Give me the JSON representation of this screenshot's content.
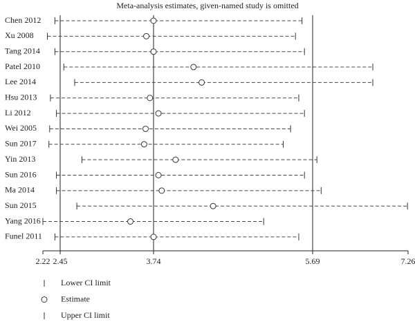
{
  "chart_data": {
    "type": "forest",
    "title": "Meta-analysis estimates, given-named study is omitted",
    "categories": [
      "Chen 2012",
      "Xu 2008",
      "Tang 2014",
      "Patel 2010",
      "Lee 2014",
      "Hsu 2013",
      "Li 2012",
      "Wei 2005",
      "Sun 2017",
      "Yin 2013",
      "Sun 2016",
      "Ma 2014",
      "Sun 2015",
      "Yang 2016",
      "Funel 2011"
    ],
    "series": [
      {
        "name": "Lower CI limit",
        "color": "#333333",
        "values": [
          2.38,
          2.28,
          2.38,
          2.5,
          2.65,
          2.32,
          2.4,
          2.31,
          2.3,
          2.75,
          2.4,
          2.4,
          2.68,
          2.22,
          2.38
        ]
      },
      {
        "name": "Estimate",
        "color": "#333333",
        "values": [
          3.74,
          3.64,
          3.74,
          4.23,
          4.33,
          3.69,
          3.8,
          3.63,
          3.61,
          4.01,
          3.8,
          3.84,
          4.47,
          3.42,
          3.74
        ]
      },
      {
        "name": "Upper CI limit",
        "color": "#333333",
        "values": [
          5.56,
          5.48,
          5.59,
          6.68,
          6.68,
          5.52,
          5.59,
          5.42,
          5.33,
          5.76,
          5.59,
          5.83,
          7.25,
          5.09,
          5.52
        ]
      }
    ],
    "xlim": [
      2.22,
      7.26
    ],
    "xticks": [
      2.22,
      2.45,
      3.74,
      5.69,
      7.26
    ]
  }
}
